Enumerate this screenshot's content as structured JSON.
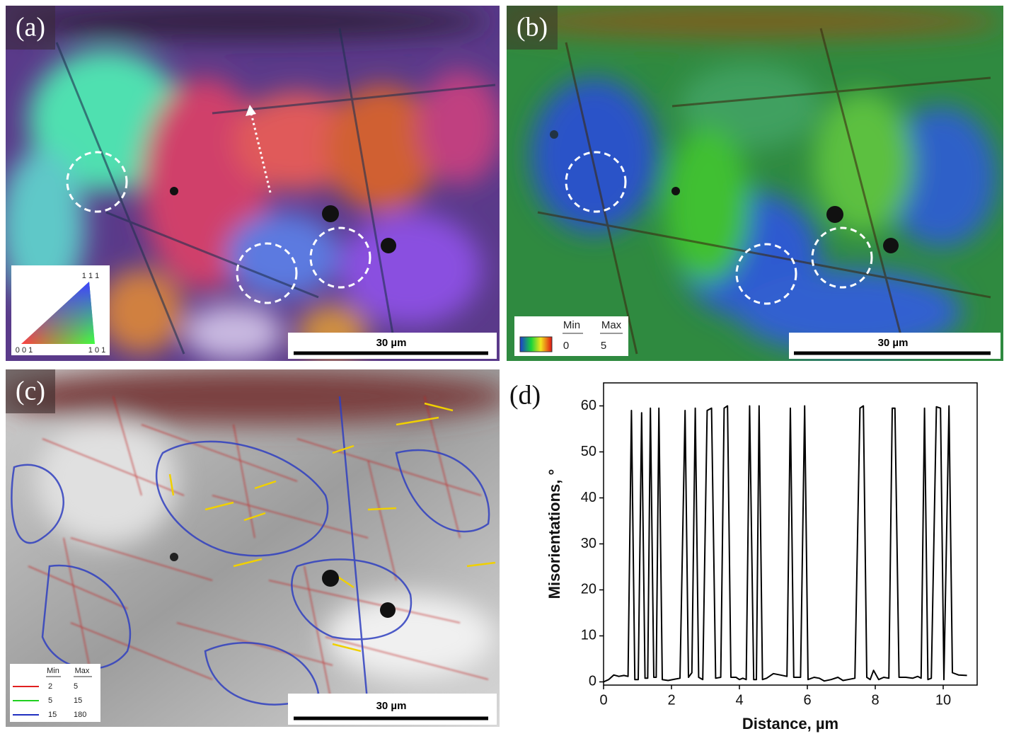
{
  "panels": [
    {
      "label": "(a)",
      "scale_bar": "30 µm",
      "ipf_legend": {
        "top": "1 1 1",
        "left": "0 0 1",
        "right": "1 0 1"
      }
    },
    {
      "label": "(b)",
      "scale_bar": "30 µm",
      "legend": {
        "headers": [
          "Min",
          "Max"
        ],
        "values": [
          "0",
          "5"
        ]
      }
    },
    {
      "label": "(c)",
      "scale_bar": "30 µm",
      "legend": {
        "headers": [
          "Min",
          "Max"
        ],
        "rows": [
          [
            "2",
            "5"
          ],
          [
            "5",
            "15"
          ],
          [
            "15",
            "180"
          ]
        ]
      }
    },
    {
      "label": "(d)"
    }
  ],
  "chart_data": {
    "type": "line",
    "x_label": "Distance, µm",
    "y_label": "Misorientations, °",
    "color": "#000000",
    "x": [
      0,
      0.15,
      0.3,
      0.45,
      0.6,
      0.72,
      0.82,
      0.92,
      1.02,
      1.12,
      1.22,
      1.3,
      1.38,
      1.48,
      1.55,
      1.63,
      1.73,
      1.9,
      2.1,
      2.25,
      2.4,
      2.5,
      2.6,
      2.7,
      2.8,
      2.92,
      3.05,
      3.18,
      3.3,
      3.45,
      3.55,
      3.65,
      3.75,
      3.9,
      4.0,
      4.1,
      4.2,
      4.3,
      4.42,
      4.5,
      4.58,
      4.68,
      4.8,
      5.0,
      5.2,
      5.4,
      5.5,
      5.6,
      5.8,
      5.92,
      6.02,
      6.2,
      6.35,
      6.5,
      6.7,
      6.9,
      7.05,
      7.2,
      7.4,
      7.55,
      7.65,
      7.75,
      7.85,
      7.95,
      8.1,
      8.25,
      8.4,
      8.5,
      8.58,
      8.7,
      8.9,
      9.1,
      9.25,
      9.35,
      9.45,
      9.55,
      9.65,
      9.8,
      9.92,
      10.02,
      10.17,
      10.27,
      10.45,
      10.7
    ],
    "values": [
      0,
      0.5,
      1.5,
      1.2,
      1.4,
      1.2,
      59,
      0.5,
      0.5,
      58.5,
      0.8,
      0.8,
      59.5,
      1,
      1,
      59.5,
      0.5,
      0.3,
      0.6,
      0.8,
      59,
      1,
      2,
      59.5,
      1,
      0.5,
      59,
      59.5,
      0.8,
      1,
      59.5,
      60,
      1,
      1,
      0.5,
      0.8,
      0.5,
      60,
      0.5,
      0.5,
      60,
      0.5,
      0.8,
      1.8,
      1.5,
      1.2,
      59.5,
      1,
      1,
      60,
      0.5,
      1,
      0.8,
      0.2,
      0.5,
      1,
      0.3,
      0.5,
      0.8,
      59.5,
      60,
      1,
      0.5,
      2.5,
      0.5,
      1,
      0.8,
      59.5,
      59.5,
      1,
      1,
      0.8,
      1.2,
      0.8,
      59.5,
      0.5,
      0.8,
      59.8,
      59.5,
      0.5,
      60,
      2,
      1.5,
      1.4
    ],
    "xlim": [
      0,
      11
    ],
    "ylim": [
      -0.7,
      65
    ],
    "xticks": [
      0,
      2,
      4,
      6,
      8,
      10
    ],
    "yticks": [
      0,
      10,
      20,
      30,
      40,
      50,
      60
    ]
  }
}
